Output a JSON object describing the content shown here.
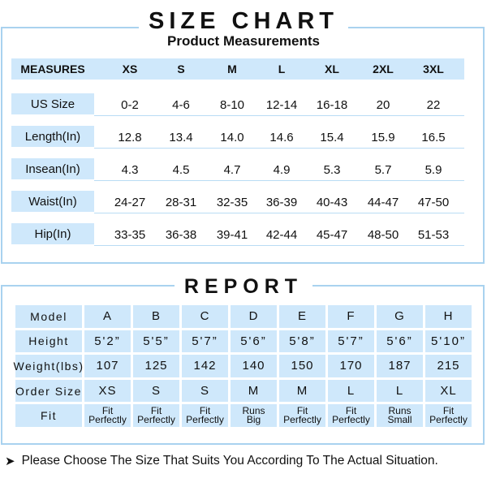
{
  "size_chart": {
    "title": "SIZE CHART",
    "subtitle": "Product Measurements",
    "header_label": "MEASURES",
    "sizes": [
      "XS",
      "S",
      "M",
      "L",
      "XL",
      "2XL",
      "3XL"
    ],
    "rows": [
      {
        "label": "US Size",
        "values": [
          "0-2",
          "4-6",
          "8-10",
          "12-14",
          "16-18",
          "20",
          "22"
        ]
      },
      {
        "label": "Length(In)",
        "values": [
          "12.8",
          "13.4",
          "14.0",
          "14.6",
          "15.4",
          "15.9",
          "16.5"
        ]
      },
      {
        "label": "Insean(In)",
        "values": [
          "4.3",
          "4.5",
          "4.7",
          "4.9",
          "5.3",
          "5.7",
          "5.9"
        ]
      },
      {
        "label": "Waist(In)",
        "values": [
          "24-27",
          "28-31",
          "32-35",
          "36-39",
          "40-43",
          "44-47",
          "47-50"
        ]
      },
      {
        "label": "Hip(In)",
        "values": [
          "33-35",
          "36-38",
          "39-41",
          "42-44",
          "45-47",
          "48-50",
          "51-53"
        ]
      }
    ]
  },
  "report": {
    "title": "REPORT",
    "rows": [
      {
        "label": "Model",
        "kind": "plain",
        "values": [
          "A",
          "B",
          "C",
          "D",
          "E",
          "F",
          "G",
          "H"
        ]
      },
      {
        "label": "Height",
        "kind": "height",
        "values": [
          "5'2”",
          "5'5”",
          "5'7”",
          "5'6”",
          "5'8”",
          "5'7”",
          "5'6”",
          "5'10”"
        ]
      },
      {
        "label": "Weight(lbs)",
        "kind": "plain",
        "values": [
          "107",
          "125",
          "142",
          "140",
          "150",
          "170",
          "187",
          "215"
        ]
      },
      {
        "label": "Order Size",
        "kind": "plain",
        "values": [
          "XS",
          "S",
          "S",
          "M",
          "M",
          "L",
          "L",
          "XL"
        ]
      },
      {
        "label": "Fit",
        "kind": "fit",
        "values": [
          [
            "Fit",
            "Perfectly"
          ],
          [
            "Fit",
            "Perfectly"
          ],
          [
            "Fit",
            "Perfectly"
          ],
          [
            "Runs",
            "Big"
          ],
          [
            "Fit",
            "Perfectly"
          ],
          [
            "Fit",
            "Perfectly"
          ],
          [
            "Runs",
            "Small"
          ],
          [
            "Fit",
            "Perfectly"
          ]
        ]
      }
    ]
  },
  "note": {
    "arrow_icon": "arrow-right-icon",
    "text": "Please Choose The Size That Suits You According To The Actual Situation."
  }
}
